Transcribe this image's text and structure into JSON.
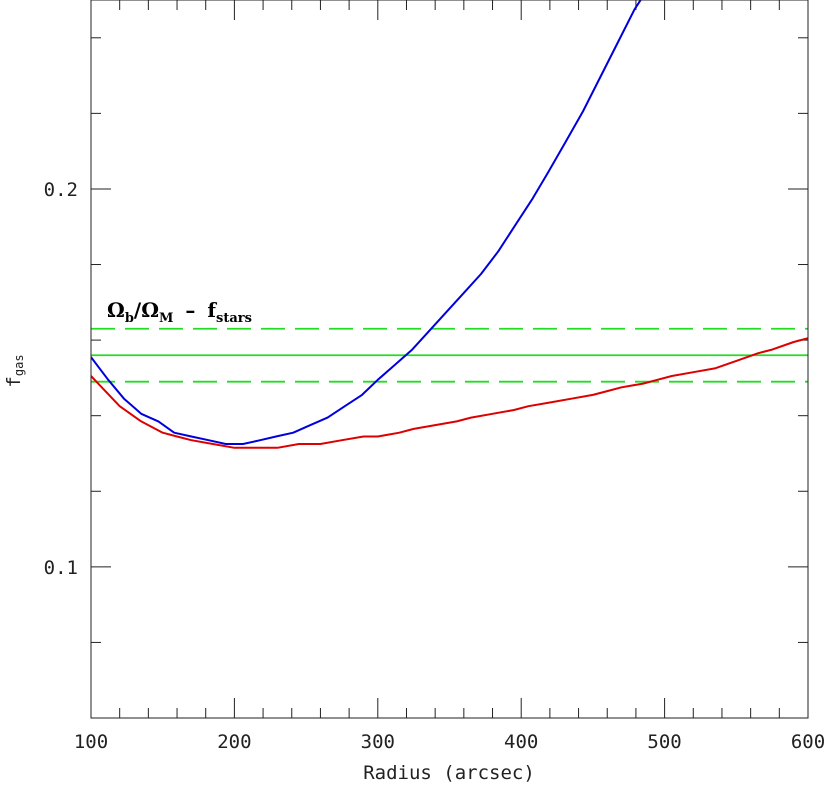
{
  "chart_data": {
    "type": "line",
    "xlabel": "Radius (arcsec)",
    "ylabel": "f",
    "ylabel_sub": "gas",
    "xlim": [
      100,
      600
    ],
    "ylim": [
      0.06,
      0.25
    ],
    "x_ticks": [
      {
        "value": 100,
        "label": "100"
      },
      {
        "value": 200,
        "label": "200"
      },
      {
        "value": 300,
        "label": "300"
      },
      {
        "value": 400,
        "label": "400"
      },
      {
        "value": 500,
        "label": "500"
      },
      {
        "value": 600,
        "label": "600"
      }
    ],
    "x_minor_step": 20,
    "y_ticks": [
      {
        "value": 0.1,
        "label": "0.1"
      },
      {
        "value": 0.2,
        "label": "0.2"
      }
    ],
    "y_minor_step": 0.02,
    "grid": false,
    "annotation": {
      "omega_b": "Ω",
      "sub_b": "b",
      "slash": "/",
      "omega_m": "Ω",
      "sub_m": "M",
      "minus": "–",
      "f": "f",
      "sub_stars": "stars"
    },
    "series": [
      {
        "color": "#0000dd",
        "style": "solid",
        "x": [
          100,
          112,
          123,
          135,
          147,
          158,
          170,
          182,
          194,
          206,
          218,
          229,
          241,
          253,
          265,
          277,
          289,
          300,
          312,
          324,
          336,
          348,
          360,
          372,
          384,
          396,
          408,
          419,
          431,
          443,
          455,
          467,
          479,
          491,
          495
        ],
        "y": [
          0.1555,
          0.1495,
          0.1445,
          0.1405,
          0.1385,
          0.1355,
          0.1345,
          0.1335,
          0.1325,
          0.1325,
          0.1335,
          0.1345,
          0.1355,
          0.1375,
          0.1395,
          0.1425,
          0.1455,
          0.1495,
          0.1535,
          0.1575,
          0.1625,
          0.1675,
          0.1725,
          0.1775,
          0.1835,
          0.1905,
          0.1975,
          0.2045,
          0.2125,
          0.2205,
          0.2295,
          0.2385,
          0.2475,
          0.2545,
          0.25
        ]
      },
      {
        "color": "#dd0000",
        "style": "solid",
        "x": [
          100,
          110,
          120,
          135,
          150,
          160,
          170,
          185,
          200,
          215,
          230,
          245,
          260,
          275,
          290,
          300,
          315,
          325,
          340,
          355,
          365,
          380,
          395,
          405,
          420,
          435,
          450,
          460,
          470,
          485,
          495,
          505,
          520,
          535,
          550,
          565,
          575,
          590,
          600
        ],
        "y": [
          0.1505,
          0.1465,
          0.1425,
          0.1385,
          0.1355,
          0.1345,
          0.1335,
          0.1325,
          0.1315,
          0.1315,
          0.1315,
          0.1325,
          0.1325,
          0.1335,
          0.1345,
          0.1345,
          0.1355,
          0.1365,
          0.1375,
          0.1385,
          0.1395,
          0.1405,
          0.1415,
          0.1425,
          0.1435,
          0.1445,
          0.1455,
          0.1465,
          0.1475,
          0.1485,
          0.1495,
          0.1505,
          0.1515,
          0.1525,
          0.1545,
          0.1565,
          0.1575,
          0.1595,
          0.1605
        ]
      }
    ],
    "hlines": [
      {
        "y": 0.156,
        "color": "#22dd22",
        "style": "solid"
      },
      {
        "y": 0.163,
        "color": "#22dd22",
        "style": "dashed"
      },
      {
        "y": 0.149,
        "color": "#22dd22",
        "style": "dashed"
      }
    ]
  }
}
